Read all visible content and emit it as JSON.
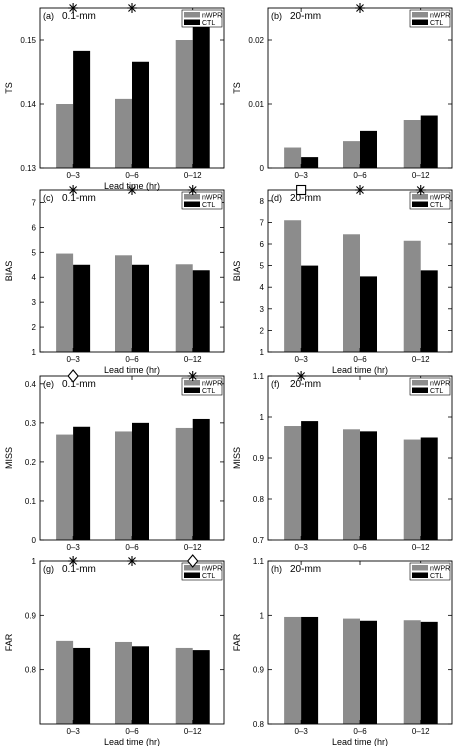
{
  "chart_data": [
    {
      "type": "bar",
      "panel_label": "(a)",
      "threshold": "0.1-mm",
      "categories": [
        "0–3",
        "0–6",
        "0–12"
      ],
      "series": [
        {
          "name": "nWPR",
          "color": "#8c8c8c",
          "values": [
            0.14,
            0.1408,
            0.15
          ]
        },
        {
          "name": "CTL",
          "color": "#000000",
          "values": [
            0.1483,
            0.1466,
            0.1522
          ]
        }
      ],
      "ylabel": "TS",
      "xlabel": "Lead time (hr)",
      "ylim": [
        0.13,
        0.155
      ],
      "yticks": [
        0.13,
        0.14,
        0.15
      ],
      "markers": [
        {
          "symbol": "asterisk",
          "category_index": 0
        },
        {
          "symbol": "asterisk",
          "category_index": 1
        }
      ]
    },
    {
      "type": "bar",
      "panel_label": "(b)",
      "threshold": "20-mm",
      "categories": [
        "0–3",
        "0–6",
        "0–12"
      ],
      "series": [
        {
          "name": "nWPR",
          "color": "#8c8c8c",
          "values": [
            0.0032,
            0.0042,
            0.0075
          ]
        },
        {
          "name": "CTL",
          "color": "#000000",
          "values": [
            0.0017,
            0.0058,
            0.0082
          ]
        }
      ],
      "ylabel": "TS",
      "xlabel": "",
      "ylim": [
        0,
        0.025
      ],
      "yticks": [
        0,
        0.01,
        0.02
      ],
      "markers": [
        {
          "symbol": "asterisk",
          "category_index": 1
        }
      ]
    },
    {
      "type": "bar",
      "panel_label": "(c)",
      "threshold": "0.1-mm",
      "categories": [
        "0–3",
        "0–6",
        "0–12"
      ],
      "series": [
        {
          "name": "nWPR",
          "color": "#8c8c8c",
          "values": [
            4.95,
            4.88,
            4.52
          ]
        },
        {
          "name": "CTL",
          "color": "#000000",
          "values": [
            4.5,
            4.5,
            4.28
          ]
        }
      ],
      "ylabel": "BIAS",
      "xlabel": "Lead time (hr)",
      "ylim": [
        1,
        7.5
      ],
      "yticks": [
        1,
        2,
        3,
        4,
        5,
        6,
        7
      ],
      "markers": [
        {
          "symbol": "asterisk",
          "category_index": 0
        },
        {
          "symbol": "asterisk",
          "category_index": 1
        },
        {
          "symbol": "asterisk",
          "category_index": 2
        }
      ]
    },
    {
      "type": "bar",
      "panel_label": "(d)",
      "threshold": "20-mm",
      "categories": [
        "0–3",
        "0–6",
        "0–12"
      ],
      "series": [
        {
          "name": "nWPR",
          "color": "#8c8c8c",
          "values": [
            7.1,
            6.45,
            6.15
          ]
        },
        {
          "name": "CTL",
          "color": "#000000",
          "values": [
            5.0,
            4.5,
            4.78
          ]
        }
      ],
      "ylabel": "BIAS",
      "xlabel": "Lead time (hr)",
      "ylim": [
        1,
        8.5
      ],
      "yticks": [
        1,
        2,
        3,
        4,
        5,
        6,
        7,
        8
      ],
      "markers": [
        {
          "symbol": "square",
          "category_index": 0
        },
        {
          "symbol": "asterisk",
          "category_index": 1
        },
        {
          "symbol": "asterisk",
          "category_index": 2
        }
      ]
    },
    {
      "type": "bar",
      "panel_label": "(e)",
      "threshold": "0.1-mm",
      "categories": [
        "0–3",
        "0–6",
        "0–12"
      ],
      "series": [
        {
          "name": "nWPR",
          "color": "#8c8c8c",
          "values": [
            0.27,
            0.278,
            0.287
          ]
        },
        {
          "name": "CTL",
          "color": "#000000",
          "values": [
            0.29,
            0.3,
            0.31
          ]
        }
      ],
      "ylabel": "MISS",
      "xlabel": "",
      "ylim": [
        0,
        0.42
      ],
      "yticks": [
        0,
        0.1,
        0.2,
        0.3,
        0.4
      ],
      "markers": [
        {
          "symbol": "diamond",
          "category_index": 0
        },
        {
          "symbol": "asterisk",
          "category_index": 2
        }
      ]
    },
    {
      "type": "bar",
      "panel_label": "(f)",
      "threshold": "20-mm",
      "categories": [
        "0–3",
        "0–6",
        "0–12"
      ],
      "series": [
        {
          "name": "nWPR",
          "color": "#8c8c8c",
          "values": [
            0.978,
            0.97,
            0.945
          ]
        },
        {
          "name": "CTL",
          "color": "#000000",
          "values": [
            0.99,
            0.965,
            0.95
          ]
        }
      ],
      "ylabel": "MISS",
      "xlabel": "",
      "ylim": [
        0.7,
        1.1
      ],
      "yticks": [
        0.7,
        0.8,
        0.9,
        1,
        1.1
      ],
      "markers": [
        {
          "symbol": "asterisk",
          "category_index": 0
        }
      ]
    },
    {
      "type": "bar",
      "panel_label": "(g)",
      "threshold": "0.1-mm",
      "categories": [
        "0–3",
        "0–6",
        "0–12"
      ],
      "series": [
        {
          "name": "nWPR",
          "color": "#8c8c8c",
          "values": [
            0.853,
            0.851,
            0.84
          ]
        },
        {
          "name": "CTL",
          "color": "#000000",
          "values": [
            0.84,
            0.843,
            0.836
          ]
        }
      ],
      "ylabel": "FAR",
      "xlabel": "Lead time (hr)",
      "ylim": [
        0.7,
        1.0
      ],
      "yticks": [
        0.8,
        0.9,
        1
      ],
      "markers": [
        {
          "symbol": "asterisk",
          "category_index": 0
        },
        {
          "symbol": "asterisk",
          "category_index": 1
        },
        {
          "symbol": "diamond",
          "category_index": 2
        }
      ]
    },
    {
      "type": "bar",
      "panel_label": "(h)",
      "threshold": "20-mm",
      "categories": [
        "0–3",
        "0–6",
        "0–12"
      ],
      "series": [
        {
          "name": "nWPR",
          "color": "#8c8c8c",
          "values": [
            0.997,
            0.994,
            0.991
          ]
        },
        {
          "name": "CTL",
          "color": "#000000",
          "values": [
            0.997,
            0.99,
            0.988
          ]
        }
      ],
      "ylabel": "FAR",
      "xlabel": "Lead time (hr)",
      "ylim": [
        0.8,
        1.1
      ],
      "yticks": [
        0.8,
        0.9,
        1,
        1.1
      ],
      "markers": []
    }
  ]
}
